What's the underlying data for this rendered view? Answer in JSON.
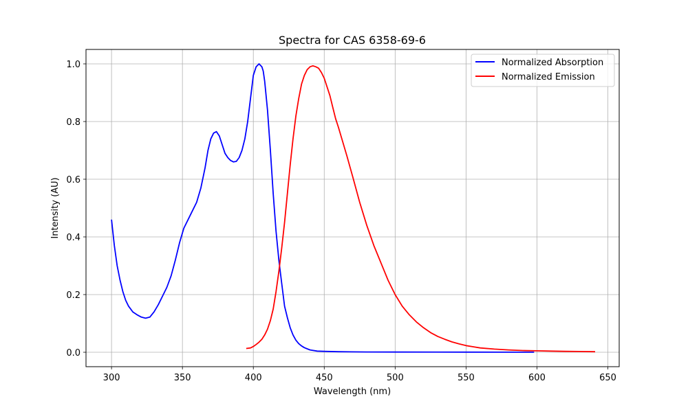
{
  "chart_data": {
    "type": "line",
    "title": "Spectra for CAS 6358-69-6",
    "xlabel": "Wavelength (nm)",
    "ylabel": "Intensity (AU)",
    "xlim": [
      282,
      658
    ],
    "ylim": [
      -0.05,
      1.05
    ],
    "xticks": [
      300,
      350,
      400,
      450,
      500,
      550,
      600,
      650
    ],
    "yticks": [
      0.0,
      0.2,
      0.4,
      0.6,
      0.8,
      1.0
    ],
    "xtick_labels": [
      "300",
      "350",
      "400",
      "450",
      "500",
      "550",
      "600",
      "650"
    ],
    "ytick_labels": [
      "0.0",
      "0.2",
      "0.4",
      "0.6",
      "0.8",
      "1.0"
    ],
    "grid": true,
    "legend_position": "top-right",
    "series": [
      {
        "name": "Normalized Absorption",
        "color": "#0000ff",
        "x": [
          300,
          302,
          304,
          306,
          308,
          310,
          312,
          315,
          318,
          321,
          324,
          327,
          330,
          333,
          336,
          339,
          342,
          345,
          348,
          351,
          354,
          357,
          360,
          363,
          366,
          368,
          370,
          372,
          374,
          376,
          378,
          380,
          382,
          384,
          386,
          388,
          390,
          392,
          394,
          396,
          398,
          400,
          402,
          404,
          406,
          407,
          408,
          410,
          412,
          414,
          416,
          418,
          420,
          422,
          424,
          426,
          428,
          430,
          432,
          434,
          436,
          438,
          440,
          445,
          450,
          460,
          480,
          500,
          550,
          598
        ],
        "y": [
          0.46,
          0.37,
          0.3,
          0.25,
          0.21,
          0.18,
          0.16,
          0.14,
          0.13,
          0.122,
          0.118,
          0.122,
          0.14,
          0.165,
          0.195,
          0.225,
          0.265,
          0.32,
          0.38,
          0.43,
          0.46,
          0.49,
          0.52,
          0.57,
          0.64,
          0.7,
          0.74,
          0.76,
          0.765,
          0.75,
          0.72,
          0.69,
          0.675,
          0.665,
          0.66,
          0.662,
          0.675,
          0.7,
          0.74,
          0.8,
          0.88,
          0.96,
          0.99,
          1.0,
          0.99,
          0.975,
          0.94,
          0.84,
          0.7,
          0.55,
          0.42,
          0.32,
          0.24,
          0.16,
          0.12,
          0.085,
          0.06,
          0.042,
          0.03,
          0.022,
          0.016,
          0.012,
          0.008,
          0.004,
          0.003,
          0.002,
          0.001,
          0.0008,
          0.0004,
          0.0002
        ]
      },
      {
        "name": "Normalized Emission",
        "color": "#ff0000",
        "x": [
          395,
          398,
          400,
          402,
          404,
          406,
          408,
          410,
          412,
          414,
          416,
          418,
          420,
          422,
          424,
          426,
          428,
          430,
          432,
          434,
          436,
          438,
          440,
          442,
          444,
          446,
          448,
          450,
          452,
          454,
          456,
          458,
          460,
          463,
          466,
          470,
          475,
          480,
          485,
          490,
          495,
          500,
          505,
          510,
          515,
          520,
          525,
          530,
          535,
          540,
          545,
          550,
          555,
          560,
          570,
          580,
          590,
          600,
          610,
          620,
          630,
          641
        ],
        "y": [
          0.013,
          0.015,
          0.02,
          0.027,
          0.035,
          0.045,
          0.06,
          0.08,
          0.11,
          0.15,
          0.21,
          0.28,
          0.36,
          0.45,
          0.55,
          0.65,
          0.74,
          0.82,
          0.88,
          0.93,
          0.96,
          0.98,
          0.99,
          0.993,
          0.99,
          0.985,
          0.97,
          0.95,
          0.92,
          0.89,
          0.85,
          0.81,
          0.78,
          0.73,
          0.68,
          0.61,
          0.52,
          0.44,
          0.37,
          0.31,
          0.25,
          0.2,
          0.16,
          0.13,
          0.105,
          0.085,
          0.068,
          0.055,
          0.045,
          0.036,
          0.029,
          0.023,
          0.019,
          0.015,
          0.011,
          0.008,
          0.006,
          0.005,
          0.004,
          0.003,
          0.0025,
          0.002
        ]
      }
    ]
  }
}
